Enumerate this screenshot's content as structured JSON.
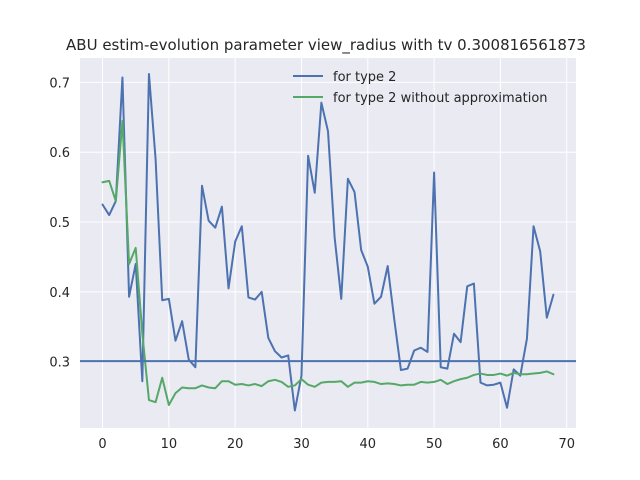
{
  "chart_data": {
    "type": "line",
    "title": "ABU estim-evolution parameter view_radius with tv 0.300816561873",
    "xlabel": "",
    "ylabel": "",
    "xlim": [
      -3.4,
      71.4
    ],
    "ylim": [
      0.205,
      0.735
    ],
    "xticks": [
      0,
      10,
      20,
      30,
      40,
      50,
      60,
      70
    ],
    "yticks": [
      0.3,
      0.4,
      0.5,
      0.6,
      0.7
    ],
    "grid": true,
    "legend_position": "top-right",
    "threshold": {
      "value": 0.300816561873,
      "color": "#4c72b0"
    },
    "series": [
      {
        "name": "for type 2",
        "color": "#4c72b0",
        "x": [
          0,
          1,
          2,
          3,
          4,
          5,
          6,
          7,
          8,
          9,
          10,
          11,
          12,
          13,
          14,
          15,
          16,
          17,
          18,
          19,
          20,
          21,
          22,
          23,
          24,
          25,
          26,
          27,
          28,
          29,
          30,
          31,
          32,
          33,
          34,
          35,
          36,
          37,
          38,
          39,
          40,
          41,
          42,
          43,
          44,
          45,
          46,
          47,
          48,
          49,
          50,
          51,
          52,
          53,
          54,
          55,
          56,
          57,
          58,
          59,
          60,
          61,
          62,
          63,
          64,
          65,
          66,
          67,
          68
        ],
        "values": [
          0.525,
          0.51,
          0.53,
          0.707,
          0.393,
          0.44,
          0.272,
          0.712,
          0.59,
          0.388,
          0.39,
          0.33,
          0.358,
          0.303,
          0.292,
          0.552,
          0.502,
          0.492,
          0.522,
          0.405,
          0.472,
          0.494,
          0.392,
          0.389,
          0.4,
          0.334,
          0.315,
          0.306,
          0.309,
          0.23,
          0.28,
          0.595,
          0.542,
          0.671,
          0.63,
          0.478,
          0.39,
          0.562,
          0.543,
          0.46,
          0.436,
          0.383,
          0.393,
          0.437,
          0.36,
          0.288,
          0.29,
          0.316,
          0.32,
          0.314,
          0.571,
          0.292,
          0.29,
          0.34,
          0.328,
          0.408,
          0.412,
          0.27,
          0.266,
          0.267,
          0.27,
          0.234,
          0.289,
          0.28,
          0.333,
          0.494,
          0.458,
          0.363,
          0.396
        ]
      },
      {
        "name": "for type 2 without approximation",
        "color": "#55a868",
        "x": [
          0,
          1,
          2,
          3,
          4,
          5,
          6,
          7,
          8,
          9,
          10,
          11,
          12,
          13,
          14,
          15,
          16,
          17,
          18,
          19,
          20,
          21,
          22,
          23,
          24,
          25,
          26,
          27,
          28,
          29,
          30,
          31,
          32,
          33,
          34,
          35,
          36,
          37,
          38,
          39,
          40,
          41,
          42,
          43,
          44,
          45,
          46,
          47,
          48,
          49,
          50,
          51,
          52,
          53,
          54,
          55,
          56,
          57,
          58,
          59,
          60,
          61,
          62,
          63,
          64,
          65,
          66,
          67,
          68
        ],
        "values": [
          0.557,
          0.559,
          0.53,
          0.645,
          0.44,
          0.463,
          0.34,
          0.245,
          0.242,
          0.277,
          0.238,
          0.255,
          0.263,
          0.262,
          0.262,
          0.266,
          0.263,
          0.262,
          0.272,
          0.272,
          0.267,
          0.268,
          0.266,
          0.268,
          0.265,
          0.272,
          0.274,
          0.271,
          0.264,
          0.266,
          0.275,
          0.267,
          0.264,
          0.27,
          0.271,
          0.271,
          0.272,
          0.264,
          0.27,
          0.27,
          0.272,
          0.271,
          0.268,
          0.269,
          0.268,
          0.266,
          0.267,
          0.267,
          0.271,
          0.27,
          0.271,
          0.274,
          0.268,
          0.272,
          0.275,
          0.277,
          0.281,
          0.283,
          0.281,
          0.281,
          0.283,
          0.28,
          0.284,
          0.282,
          0.282,
          0.283,
          0.284,
          0.286,
          0.282
        ]
      }
    ]
  }
}
